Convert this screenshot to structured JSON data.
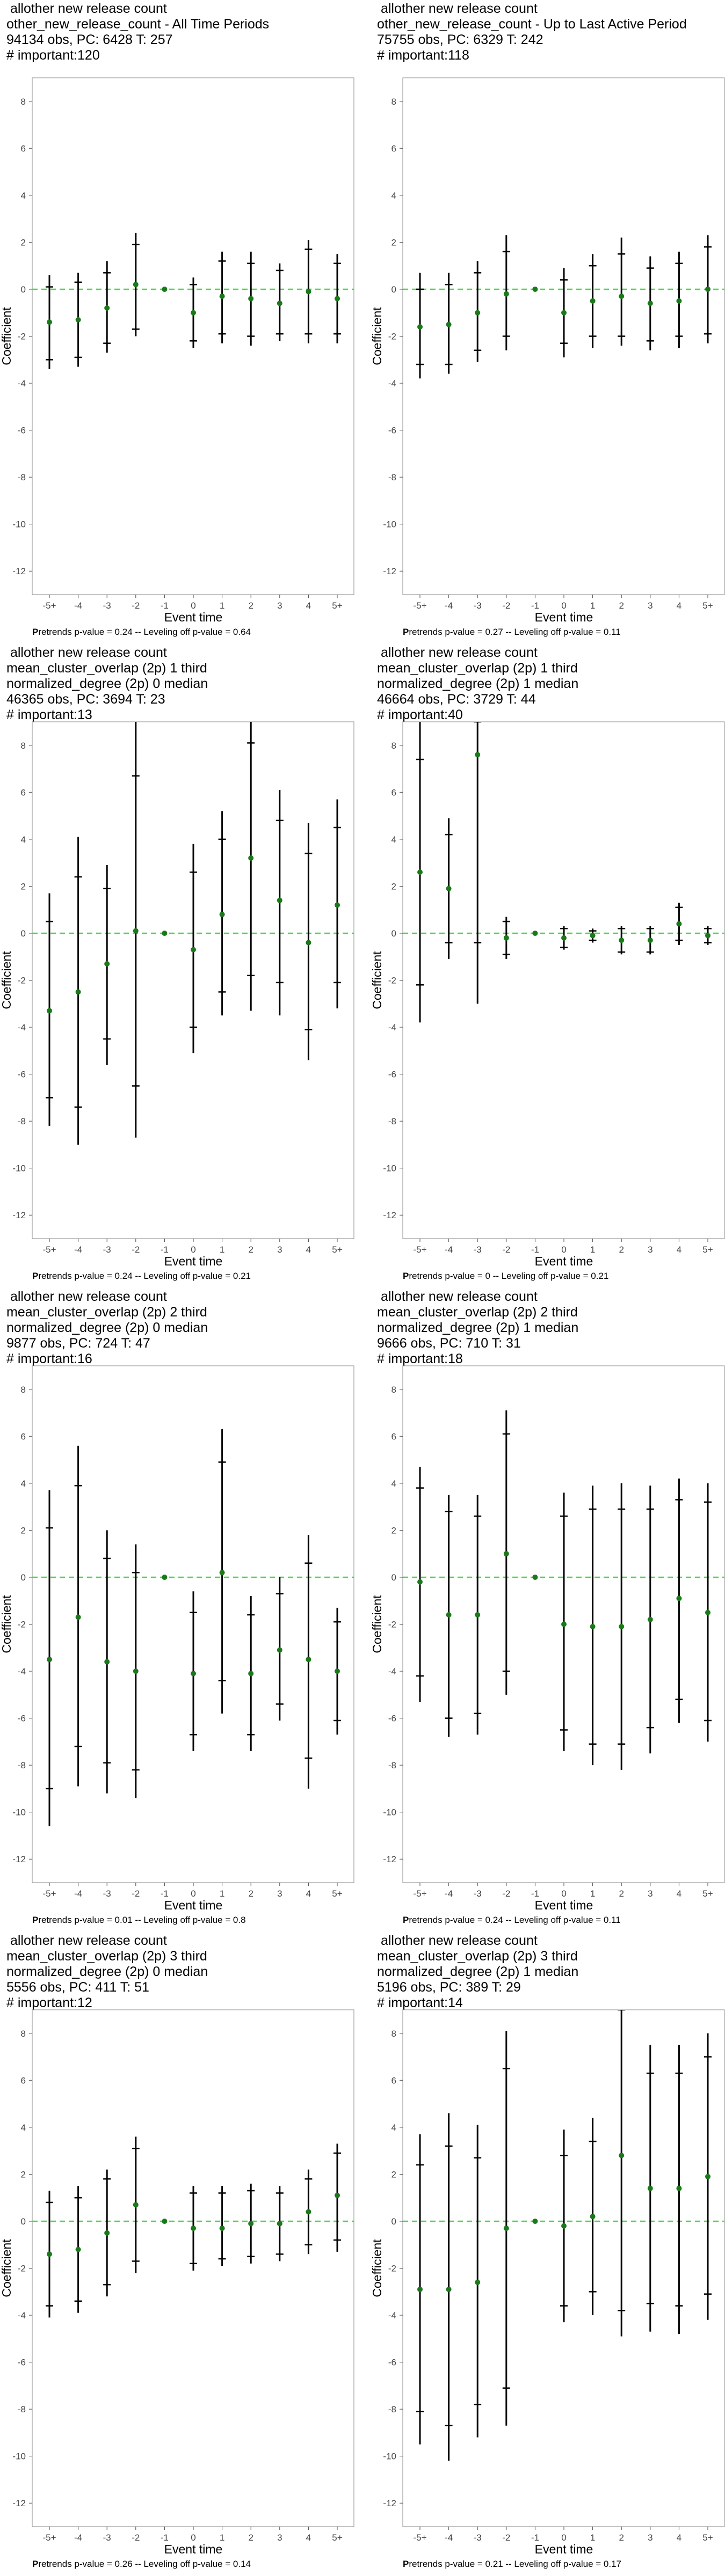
{
  "chart_data": [
    {
      "type": "scatter",
      "title_lines": [
        "allother new release count",
        "other_new_release_count - All Time Periods",
        "94134 obs, PC: 6428 T: 257",
        "# important:120"
      ],
      "xlabel": "Event time",
      "ylabel": "Coefficient",
      "categories": [
        "-5+",
        "-4",
        "-3",
        "-2",
        "-1",
        "0",
        "1",
        "2",
        "3",
        "4",
        "5+"
      ],
      "ylim": [
        -13,
        9
      ],
      "yticks": [
        -12,
        -10,
        -8,
        -6,
        -4,
        -2,
        0,
        2,
        4,
        6,
        8
      ],
      "estimates": [
        -1.4,
        -1.3,
        -0.8,
        0.2,
        0,
        -1.0,
        -0.3,
        -0.4,
        -0.6,
        -0.1,
        -0.4
      ],
      "ci95": [
        [
          -3.4,
          0.6
        ],
        [
          -3.3,
          0.7
        ],
        [
          -2.7,
          1.2
        ],
        [
          -2.0,
          2.4
        ],
        [
          0,
          0
        ],
        [
          -2.5,
          0.5
        ],
        [
          -2.3,
          1.6
        ],
        [
          -2.4,
          1.6
        ],
        [
          -2.2,
          1.1
        ],
        [
          -2.3,
          2.1
        ],
        [
          -2.3,
          1.5
        ]
      ],
      "ci90": [
        [
          -3.0,
          0.1
        ],
        [
          -2.9,
          0.3
        ],
        [
          -2.3,
          0.7
        ],
        [
          -1.7,
          1.9
        ],
        [
          0,
          0
        ],
        [
          -2.2,
          0.2
        ],
        [
          -1.9,
          1.2
        ],
        [
          -2.0,
          1.1
        ],
        [
          -1.9,
          0.8
        ],
        [
          -1.9,
          1.7
        ],
        [
          -1.9,
          1.1
        ]
      ],
      "footnote_prefix": "P",
      "footnote_rest": "retrends p-value = 0.24 -- Leveling off p-value = 0.64"
    },
    {
      "type": "scatter",
      "title_lines": [
        "allother new release count",
        "other_new_release_count - Up to Last Active Period",
        "75755 obs, PC: 6329 T: 242",
        "# important:118"
      ],
      "xlabel": "Event time",
      "ylabel": "Coefficient",
      "categories": [
        "-5+",
        "-4",
        "-3",
        "-2",
        "-1",
        "0",
        "1",
        "2",
        "3",
        "4",
        "5+"
      ],
      "ylim": [
        -13,
        9
      ],
      "yticks": [
        -12,
        -10,
        -8,
        -6,
        -4,
        -2,
        0,
        2,
        4,
        6,
        8
      ],
      "estimates": [
        -1.6,
        -1.5,
        -1.0,
        -0.2,
        0,
        -1.0,
        -0.5,
        -0.3,
        -0.6,
        -0.5,
        0.0
      ],
      "ci95": [
        [
          -3.8,
          0.7
        ],
        [
          -3.6,
          0.7
        ],
        [
          -3.1,
          1.2
        ],
        [
          -2.6,
          2.3
        ],
        [
          0,
          0
        ],
        [
          -2.9,
          0.9
        ],
        [
          -2.5,
          1.5
        ],
        [
          -2.4,
          2.2
        ],
        [
          -2.6,
          1.4
        ],
        [
          -2.5,
          1.6
        ],
        [
          -2.3,
          2.3
        ]
      ],
      "ci90": [
        [
          -3.2,
          0.0
        ],
        [
          -3.2,
          0.2
        ],
        [
          -2.6,
          0.7
        ],
        [
          -2.0,
          1.6
        ],
        [
          0,
          0
        ],
        [
          -2.3,
          0.4
        ],
        [
          -2.0,
          1.0
        ],
        [
          -2.0,
          1.5
        ],
        [
          -2.2,
          0.9
        ],
        [
          -2.0,
          1.1
        ],
        [
          -1.9,
          1.8
        ]
      ],
      "footnote_prefix": "P",
      "footnote_rest": "retrends p-value = 0.27 -- Leveling off p-value = 0.11"
    },
    {
      "type": "scatter",
      "title_lines": [
        "allother new release count",
        "mean_cluster_overlap (2p) 1 third",
        "normalized_degree (2p) 0 median",
        "46365 obs, PC: 3694 T: 23",
        "# important:13"
      ],
      "xlabel": "Event time",
      "ylabel": "Coefficient",
      "categories": [
        "-5+",
        "-4",
        "-3",
        "-2",
        "-1",
        "0",
        "1",
        "2",
        "3",
        "4",
        "5+"
      ],
      "ylim": [
        -13,
        9
      ],
      "yticks": [
        -12,
        -10,
        -8,
        -6,
        -4,
        -2,
        0,
        2,
        4,
        6,
        8
      ],
      "estimates": [
        -3.3,
        -2.5,
        -1.3,
        0.1,
        0,
        -0.7,
        0.8,
        3.2,
        1.4,
        -0.4,
        1.2
      ],
      "ci95": [
        [
          -8.2,
          1.7
        ],
        [
          -9.0,
          4.1
        ],
        [
          -5.6,
          2.9
        ],
        [
          -8.7,
          9.0
        ],
        [
          0,
          0
        ],
        [
          -5.1,
          3.8
        ],
        [
          -3.5,
          5.2
        ],
        [
          -3.3,
          9.0
        ],
        [
          -3.5,
          6.1
        ],
        [
          -5.4,
          4.7
        ],
        [
          -3.2,
          5.7
        ]
      ],
      "ci90": [
        [
          -7.0,
          0.5
        ],
        [
          -7.4,
          2.4
        ],
        [
          -4.5,
          1.9
        ],
        [
          -6.5,
          6.7
        ],
        [
          0,
          0
        ],
        [
          -4.0,
          2.6
        ],
        [
          -2.5,
          4.0
        ],
        [
          -1.8,
          8.1
        ],
        [
          -2.1,
          4.8
        ],
        [
          -4.1,
          3.4
        ],
        [
          -2.1,
          4.5
        ]
      ],
      "footnote_prefix": "P",
      "footnote_rest": "retrends p-value = 0.24 -- Leveling off p-value = 0.21"
    },
    {
      "type": "scatter",
      "title_lines": [
        "allother new release count",
        "mean_cluster_overlap (2p) 1 third",
        "normalized_degree (2p) 1 median",
        "46664 obs, PC: 3729 T: 44",
        "# important:40"
      ],
      "xlabel": "Event time",
      "ylabel": "Coefficient",
      "categories": [
        "-5+",
        "-4",
        "-3",
        "-2",
        "-1",
        "0",
        "1",
        "2",
        "3",
        "4",
        "5+"
      ],
      "ylim": [
        -13,
        9
      ],
      "yticks": [
        -12,
        -10,
        -8,
        -6,
        -4,
        -2,
        0,
        2,
        4,
        6,
        8
      ],
      "estimates": [
        2.6,
        1.9,
        7.6,
        -0.2,
        0,
        -0.2,
        -0.1,
        -0.3,
        -0.3,
        0.4,
        -0.1
      ],
      "ci95": [
        [
          -3.8,
          9.0
        ],
        [
          -1.1,
          4.9
        ],
        [
          -3.0,
          9.0
        ],
        [
          -1.1,
          0.7
        ],
        [
          0,
          0
        ],
        [
          -0.7,
          0.3
        ],
        [
          -0.4,
          0.2
        ],
        [
          -0.9,
          0.3
        ],
        [
          -0.9,
          0.3
        ],
        [
          -0.5,
          1.3
        ],
        [
          -0.5,
          0.3
        ]
      ],
      "ci90": [
        [
          -2.2,
          7.4
        ],
        [
          -0.4,
          4.2
        ],
        [
          -0.4,
          9.0
        ],
        [
          -0.9,
          0.5
        ],
        [
          0,
          0
        ],
        [
          -0.6,
          0.2
        ],
        [
          -0.3,
          0.1
        ],
        [
          -0.8,
          0.2
        ],
        [
          -0.8,
          0.2
        ],
        [
          -0.3,
          1.1
        ],
        [
          -0.4,
          0.2
        ]
      ],
      "footnote_prefix": "P",
      "footnote_rest": "retrends p-value = 0 -- Leveling off p-value = 0.21"
    },
    {
      "type": "scatter",
      "title_lines": [
        "allother new release count",
        "mean_cluster_overlap (2p) 2 third",
        "normalized_degree (2p) 0 median",
        "9877 obs, PC: 724 T: 47",
        "# important:16"
      ],
      "xlabel": "Event time",
      "ylabel": "Coefficient",
      "categories": [
        "-5+",
        "-4",
        "-3",
        "-2",
        "-1",
        "0",
        "1",
        "2",
        "3",
        "4",
        "5+"
      ],
      "ylim": [
        -13,
        9
      ],
      "yticks": [
        -12,
        -10,
        -8,
        -6,
        -4,
        -2,
        0,
        2,
        4,
        6,
        8
      ],
      "estimates": [
        -3.5,
        -1.7,
        -3.6,
        -4.0,
        0,
        -4.1,
        0.2,
        -4.1,
        -3.1,
        -3.5,
        -4.0
      ],
      "ci95": [
        [
          -10.6,
          3.7
        ],
        [
          -8.9,
          5.6
        ],
        [
          -9.2,
          2.0
        ],
        [
          -9.4,
          1.4
        ],
        [
          0,
          0
        ],
        [
          -7.4,
          -0.6
        ],
        [
          -5.8,
          6.3
        ],
        [
          -7.4,
          -0.8
        ],
        [
          -6.1,
          0.0
        ],
        [
          -9.0,
          1.8
        ],
        [
          -6.7,
          -1.3
        ]
      ],
      "ci90": [
        [
          -9.0,
          2.1
        ],
        [
          -7.2,
          3.9
        ],
        [
          -7.9,
          0.8
        ],
        [
          -8.2,
          0.2
        ],
        [
          0,
          0
        ],
        [
          -6.7,
          -1.5
        ],
        [
          -4.4,
          4.9
        ],
        [
          -6.7,
          -1.6
        ],
        [
          -5.4,
          -0.7
        ],
        [
          -7.7,
          0.6
        ],
        [
          -6.1,
          -1.9
        ]
      ],
      "footnote_prefix": "P",
      "footnote_rest": "retrends p-value = 0.01 -- Leveling off p-value = 0.8"
    },
    {
      "type": "scatter",
      "title_lines": [
        "allother new release count",
        "mean_cluster_overlap (2p) 2 third",
        "normalized_degree (2p) 1 median",
        "9666 obs, PC: 710 T: 31",
        "# important:18"
      ],
      "xlabel": "Event time",
      "ylabel": "Coefficient",
      "categories": [
        "-5+",
        "-4",
        "-3",
        "-2",
        "-1",
        "0",
        "1",
        "2",
        "3",
        "4",
        "5+"
      ],
      "ylim": [
        -13,
        9
      ],
      "yticks": [
        -12,
        -10,
        -8,
        -6,
        -4,
        -2,
        0,
        2,
        4,
        6,
        8
      ],
      "estimates": [
        -0.2,
        -1.6,
        -1.6,
        1.0,
        0,
        -2.0,
        -2.1,
        -2.1,
        -1.8,
        -0.9,
        -1.5
      ],
      "ci95": [
        [
          -5.3,
          4.7
        ],
        [
          -6.8,
          3.5
        ],
        [
          -6.7,
          3.5
        ],
        [
          -5.0,
          7.1
        ],
        [
          0,
          0
        ],
        [
          -7.4,
          3.6
        ],
        [
          -8.0,
          3.9
        ],
        [
          -8.2,
          4.0
        ],
        [
          -7.5,
          3.9
        ],
        [
          -6.2,
          4.2
        ],
        [
          -7.0,
          4.0
        ]
      ],
      "ci90": [
        [
          -4.2,
          3.8
        ],
        [
          -6.0,
          2.8
        ],
        [
          -5.8,
          2.6
        ],
        [
          -4.0,
          6.1
        ],
        [
          0,
          0
        ],
        [
          -6.5,
          2.6
        ],
        [
          -7.1,
          2.9
        ],
        [
          -7.1,
          2.9
        ],
        [
          -6.4,
          2.9
        ],
        [
          -5.2,
          3.3
        ],
        [
          -6.1,
          3.2
        ]
      ],
      "footnote_prefix": "P",
      "footnote_rest": "retrends p-value = 0.24 -- Leveling off p-value = 0.11"
    },
    {
      "type": "scatter",
      "title_lines": [
        "allother new release count",
        "mean_cluster_overlap (2p) 3 third",
        "normalized_degree (2p) 0 median",
        "5556 obs, PC: 411 T: 51",
        "# important:12"
      ],
      "xlabel": "Event time",
      "ylabel": "Coefficient",
      "categories": [
        "-5+",
        "-4",
        "-3",
        "-2",
        "-1",
        "0",
        "1",
        "2",
        "3",
        "4",
        "5+"
      ],
      "ylim": [
        -13,
        9
      ],
      "yticks": [
        -12,
        -10,
        -8,
        -6,
        -4,
        -2,
        0,
        2,
        4,
        6,
        8
      ],
      "estimates": [
        -1.4,
        -1.2,
        -0.5,
        0.7,
        0,
        -0.3,
        -0.3,
        -0.1,
        -0.1,
        0.4,
        1.1
      ],
      "ci95": [
        [
          -4.1,
          1.3
        ],
        [
          -3.9,
          1.5
        ],
        [
          -3.2,
          2.2
        ],
        [
          -2.2,
          3.6
        ],
        [
          0,
          0
        ],
        [
          -2.1,
          1.5
        ],
        [
          -1.9,
          1.5
        ],
        [
          -1.8,
          1.6
        ],
        [
          -1.7,
          1.5
        ],
        [
          -1.4,
          2.2
        ],
        [
          -1.3,
          3.3
        ]
      ],
      "ci90": [
        [
          -3.6,
          0.8
        ],
        [
          -3.4,
          1.0
        ],
        [
          -2.7,
          1.8
        ],
        [
          -1.7,
          3.1
        ],
        [
          0,
          0
        ],
        [
          -1.8,
          1.2
        ],
        [
          -1.6,
          1.2
        ],
        [
          -1.5,
          1.3
        ],
        [
          -1.4,
          1.2
        ],
        [
          -1.0,
          1.8
        ],
        [
          -0.8,
          2.9
        ]
      ],
      "footnote_prefix": "P",
      "footnote_rest": "retrends p-value = 0.26 -- Leveling off p-value = 0.14"
    },
    {
      "type": "scatter",
      "title_lines": [
        "allother new release count",
        "mean_cluster_overlap (2p) 3 third",
        "normalized_degree (2p) 1 median",
        "5196 obs, PC: 389 T: 29",
        "# important:14"
      ],
      "xlabel": "Event time",
      "ylabel": "Coefficient",
      "categories": [
        "-5+",
        "-4",
        "-3",
        "-2",
        "-1",
        "0",
        "1",
        "2",
        "3",
        "4",
        "5+"
      ],
      "ylim": [
        -13,
        9
      ],
      "yticks": [
        -12,
        -10,
        -8,
        -6,
        -4,
        -2,
        0,
        2,
        4,
        6,
        8
      ],
      "estimates": [
        -2.9,
        -2.9,
        -2.6,
        -0.3,
        0,
        -0.2,
        0.2,
        2.8,
        1.4,
        1.4,
        1.9
      ],
      "ci95": [
        [
          -9.5,
          3.7
        ],
        [
          -10.2,
          4.6
        ],
        [
          -9.2,
          4.1
        ],
        [
          -8.7,
          8.1
        ],
        [
          0,
          0
        ],
        [
          -4.3,
          3.9
        ],
        [
          -4.0,
          4.4
        ],
        [
          -4.9,
          9.0
        ],
        [
          -4.7,
          7.5
        ],
        [
          -4.8,
          7.5
        ],
        [
          -4.2,
          8.0
        ]
      ],
      "ci90": [
        [
          -8.1,
          2.4
        ],
        [
          -8.7,
          3.2
        ],
        [
          -7.8,
          2.7
        ],
        [
          -7.1,
          6.5
        ],
        [
          0,
          0
        ],
        [
          -3.6,
          2.8
        ],
        [
          -3.0,
          3.4
        ],
        [
          -3.8,
          9.0
        ],
        [
          -3.5,
          6.3
        ],
        [
          -3.6,
          6.3
        ],
        [
          -3.1,
          7.0
        ]
      ],
      "footnote_prefix": "P",
      "footnote_rest": "retrends p-value = 0.21 -- Leveling off p-value = 0.17"
    }
  ],
  "colors": {
    "estimate_point": "#1a7a1a",
    "zero_line": "#44dd44",
    "error_bar": "#000000",
    "axis_text": "#444444",
    "panel_border": "#888888"
  }
}
